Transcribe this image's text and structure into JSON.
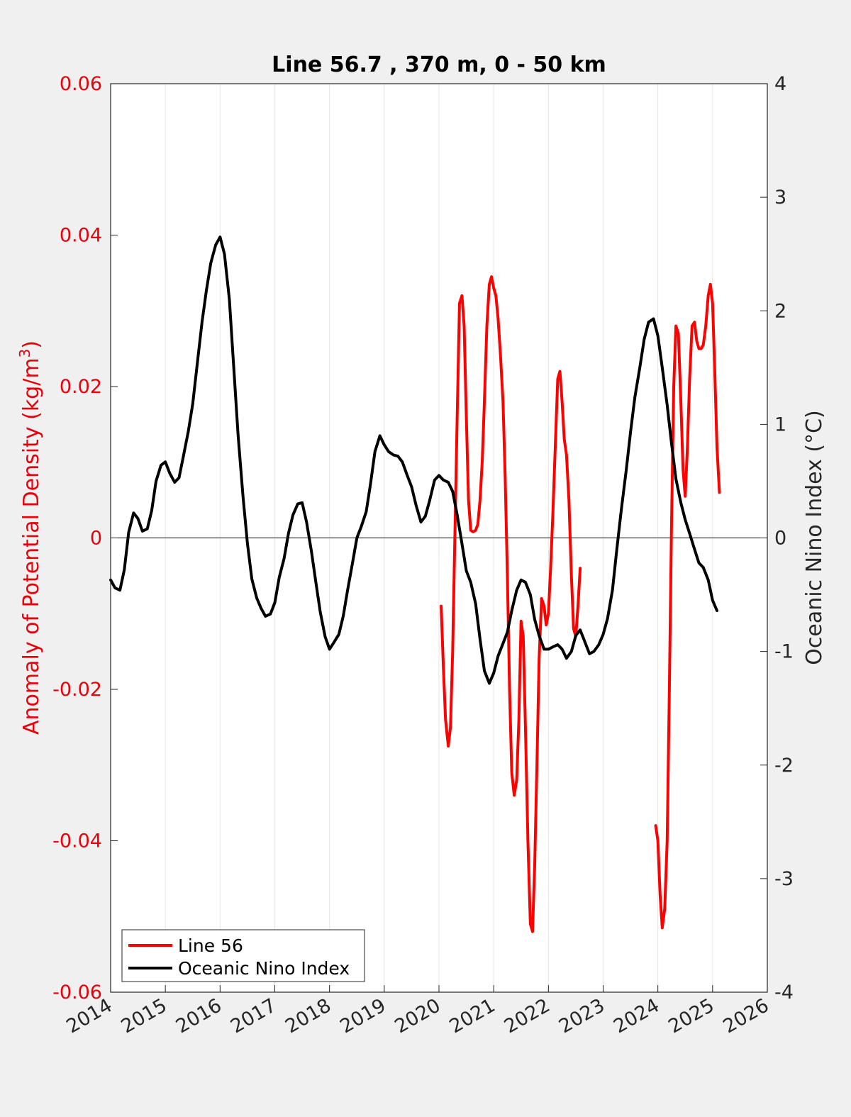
{
  "chart_data": {
    "type": "line",
    "title": "Line 56.7 , 370 m, 0 - 50 km",
    "xlabel": "",
    "ylabel_left": "Anomaly of Potential Density (kg/m",
    "ylabel_left_sup": "3",
    "ylabel_left_close": ")",
    "ylabel_right": "Oceanic Nino Index (°C)",
    "xlim": [
      2014,
      2026
    ],
    "ylim_left": [
      -0.06,
      0.06
    ],
    "ylim_right": [
      -4,
      4
    ],
    "x_ticks": [
      2014,
      2015,
      2016,
      2017,
      2018,
      2019,
      2020,
      2021,
      2022,
      2023,
      2024,
      2025,
      2026
    ],
    "x_tick_labels": [
      "2014",
      "2015",
      "2016",
      "2017",
      "2018",
      "2019",
      "2020",
      "2021",
      "2022",
      "2023",
      "2024",
      "2025",
      "2026"
    ],
    "y_left_ticks": [
      0.06,
      0.04,
      0.02,
      0,
      -0.02,
      -0.04,
      -0.06
    ],
    "y_left_tick_labels": [
      "0.06",
      "0.04",
      "0.02",
      "0",
      "-0.02",
      "-0.04",
      "-0.06"
    ],
    "y_right_ticks": [
      4,
      3,
      2,
      1,
      0,
      -1,
      -2,
      -3,
      -4
    ],
    "y_right_tick_labels": [
      "4",
      "3",
      "2",
      "1",
      "0",
      "-1",
      "-2",
      "-3",
      "-4"
    ],
    "grid": "vertical",
    "legend_position": "bottom-left",
    "colors": {
      "line56": "#ff0000",
      "oni": "#000000",
      "left_axis": "#e8000b",
      "plot_bg": "#ffffff",
      "figure_bg": "#f0f0f0"
    },
    "series": [
      {
        "name": "Line 56",
        "axis": "left",
        "segments": [
          [
            [
              2020.04,
              -0.009
            ],
            [
              2020.08,
              -0.017
            ],
            [
              2020.12,
              -0.024
            ],
            [
              2020.17,
              -0.0275
            ],
            [
              2020.21,
              -0.025
            ],
            [
              2020.25,
              -0.015
            ],
            [
              2020.29,
              0.0
            ],
            [
              2020.33,
              0.015
            ],
            [
              2020.375,
              0.031
            ],
            [
              2020.42,
              0.032
            ],
            [
              2020.46,
              0.028
            ],
            [
              2020.5,
              0.016
            ],
            [
              2020.54,
              0.005
            ],
            [
              2020.58,
              0.001
            ],
            [
              2020.625,
              0.0008
            ],
            [
              2020.67,
              0.001
            ],
            [
              2020.71,
              0.0018
            ],
            [
              2020.75,
              0.005
            ],
            [
              2020.79,
              0.01
            ],
            [
              2020.83,
              0.018
            ],
            [
              2020.875,
              0.028
            ],
            [
              2020.92,
              0.0335
            ],
            [
              2020.96,
              0.0345
            ],
            [
              2021.0,
              0.033
            ],
            [
              2021.04,
              0.032
            ],
            [
              2021.08,
              0.029
            ],
            [
              2021.125,
              0.024
            ],
            [
              2021.17,
              0.018
            ],
            [
              2021.21,
              0.008
            ],
            [
              2021.25,
              -0.005
            ],
            [
              2021.29,
              -0.02
            ],
            [
              2021.33,
              -0.031
            ],
            [
              2021.375,
              -0.034
            ],
            [
              2021.42,
              -0.032
            ],
            [
              2021.46,
              -0.024
            ],
            [
              2021.5,
              -0.011
            ],
            [
              2021.54,
              -0.013
            ],
            [
              2021.58,
              -0.025
            ],
            [
              2021.625,
              -0.04
            ],
            [
              2021.67,
              -0.051
            ],
            [
              2021.71,
              -0.052
            ],
            [
              2021.75,
              -0.043
            ],
            [
              2021.79,
              -0.03
            ],
            [
              2021.83,
              -0.016
            ],
            [
              2021.875,
              -0.008
            ],
            [
              2021.92,
              -0.009
            ],
            [
              2021.96,
              -0.0115
            ],
            [
              2022.0,
              -0.01
            ],
            [
              2022.04,
              -0.004
            ],
            [
              2022.08,
              0.003
            ],
            [
              2022.125,
              0.012
            ],
            [
              2022.17,
              0.021
            ],
            [
              2022.21,
              0.022
            ],
            [
              2022.25,
              0.018
            ],
            [
              2022.29,
              0.013
            ],
            [
              2022.33,
              0.011
            ],
            [
              2022.375,
              0.005
            ],
            [
              2022.42,
              -0.005
            ],
            [
              2022.46,
              -0.012
            ],
            [
              2022.5,
              -0.013
            ],
            [
              2022.54,
              -0.009
            ],
            [
              2022.58,
              -0.004
            ]
          ],
          [
            [
              2023.96,
              -0.038
            ],
            [
              2024.0,
              -0.04
            ],
            [
              2024.04,
              -0.047
            ],
            [
              2024.08,
              -0.0515
            ],
            [
              2024.125,
              -0.049
            ],
            [
              2024.17,
              -0.04
            ],
            [
              2024.21,
              -0.02
            ],
            [
              2024.25,
              0.002
            ],
            [
              2024.29,
              0.02
            ],
            [
              2024.33,
              0.028
            ],
            [
              2024.375,
              0.027
            ],
            [
              2024.42,
              0.018
            ],
            [
              2024.46,
              0.009
            ],
            [
              2024.5,
              0.0055
            ],
            [
              2024.54,
              0.012
            ],
            [
              2024.58,
              0.021
            ],
            [
              2024.625,
              0.028
            ],
            [
              2024.67,
              0.0285
            ],
            [
              2024.71,
              0.026
            ],
            [
              2024.75,
              0.025
            ],
            [
              2024.79,
              0.025
            ],
            [
              2024.83,
              0.0255
            ],
            [
              2024.875,
              0.028
            ],
            [
              2024.92,
              0.032
            ],
            [
              2024.96,
              0.0335
            ],
            [
              2025.0,
              0.031
            ],
            [
              2025.04,
              0.022
            ],
            [
              2025.08,
              0.012
            ],
            [
              2025.125,
              0.006
            ]
          ]
        ]
      },
      {
        "name": "Oceanic Nino Index",
        "axis": "right",
        "segments": [
          [
            [
              2014.0,
              -0.37
            ],
            [
              2014.08,
              -0.44
            ],
            [
              2014.17,
              -0.46
            ],
            [
              2014.25,
              -0.28
            ],
            [
              2014.33,
              0.05
            ],
            [
              2014.42,
              0.22
            ],
            [
              2014.5,
              0.17
            ],
            [
              2014.58,
              0.06
            ],
            [
              2014.67,
              0.08
            ],
            [
              2014.75,
              0.24
            ],
            [
              2014.83,
              0.5
            ],
            [
              2014.92,
              0.64
            ],
            [
              2015.0,
              0.67
            ],
            [
              2015.08,
              0.57
            ],
            [
              2015.17,
              0.49
            ],
            [
              2015.25,
              0.53
            ],
            [
              2015.33,
              0.72
            ],
            [
              2015.42,
              0.94
            ],
            [
              2015.5,
              1.18
            ],
            [
              2015.58,
              1.52
            ],
            [
              2015.67,
              1.9
            ],
            [
              2015.75,
              2.18
            ],
            [
              2015.83,
              2.42
            ],
            [
              2015.92,
              2.58
            ],
            [
              2016.0,
              2.65
            ],
            [
              2016.08,
              2.5
            ],
            [
              2016.17,
              2.1
            ],
            [
              2016.25,
              1.5
            ],
            [
              2016.33,
              0.9
            ],
            [
              2016.42,
              0.36
            ],
            [
              2016.5,
              -0.05
            ],
            [
              2016.58,
              -0.36
            ],
            [
              2016.67,
              -0.53
            ],
            [
              2016.75,
              -0.62
            ],
            [
              2016.83,
              -0.69
            ],
            [
              2016.92,
              -0.67
            ],
            [
              2017.0,
              -0.57
            ],
            [
              2017.08,
              -0.35
            ],
            [
              2017.17,
              -0.18
            ],
            [
              2017.25,
              0.04
            ],
            [
              2017.33,
              0.2
            ],
            [
              2017.42,
              0.3
            ],
            [
              2017.5,
              0.31
            ],
            [
              2017.58,
              0.14
            ],
            [
              2017.67,
              -0.12
            ],
            [
              2017.75,
              -0.39
            ],
            [
              2017.83,
              -0.65
            ],
            [
              2017.92,
              -0.87
            ],
            [
              2018.0,
              -0.98
            ],
            [
              2018.08,
              -0.92
            ],
            [
              2018.17,
              -0.85
            ],
            [
              2018.25,
              -0.69
            ],
            [
              2018.33,
              -0.46
            ],
            [
              2018.42,
              -0.22
            ],
            [
              2018.5,
              0.0
            ],
            [
              2018.58,
              0.1
            ],
            [
              2018.67,
              0.23
            ],
            [
              2018.75,
              0.48
            ],
            [
              2018.83,
              0.76
            ],
            [
              2018.92,
              0.9
            ],
            [
              2019.0,
              0.82
            ],
            [
              2019.08,
              0.76
            ],
            [
              2019.17,
              0.73
            ],
            [
              2019.25,
              0.72
            ],
            [
              2019.33,
              0.67
            ],
            [
              2019.42,
              0.55
            ],
            [
              2019.5,
              0.45
            ],
            [
              2019.58,
              0.29
            ],
            [
              2019.67,
              0.14
            ],
            [
              2019.75,
              0.19
            ],
            [
              2019.83,
              0.33
            ],
            [
              2019.92,
              0.51
            ],
            [
              2020.0,
              0.55
            ],
            [
              2020.08,
              0.51
            ],
            [
              2020.17,
              0.49
            ],
            [
              2020.25,
              0.41
            ],
            [
              2020.33,
              0.21
            ],
            [
              2020.42,
              -0.05
            ],
            [
              2020.5,
              -0.29
            ],
            [
              2020.58,
              -0.39
            ],
            [
              2020.67,
              -0.58
            ],
            [
              2020.75,
              -0.89
            ],
            [
              2020.83,
              -1.17
            ],
            [
              2020.92,
              -1.28
            ],
            [
              2021.0,
              -1.19
            ],
            [
              2021.08,
              -1.04
            ],
            [
              2021.17,
              -0.93
            ],
            [
              2021.25,
              -0.83
            ],
            [
              2021.33,
              -0.64
            ],
            [
              2021.42,
              -0.46
            ],
            [
              2021.5,
              -0.37
            ],
            [
              2021.58,
              -0.39
            ],
            [
              2021.67,
              -0.5
            ],
            [
              2021.75,
              -0.72
            ],
            [
              2021.83,
              -0.86
            ],
            [
              2021.92,
              -0.98
            ],
            [
              2022.0,
              -0.98
            ],
            [
              2022.08,
              -0.96
            ],
            [
              2022.17,
              -0.94
            ],
            [
              2022.25,
              -0.98
            ],
            [
              2022.33,
              -1.06
            ],
            [
              2022.42,
              -1.0
            ],
            [
              2022.5,
              -0.86
            ],
            [
              2022.58,
              -0.81
            ],
            [
              2022.67,
              -0.92
            ],
            [
              2022.75,
              -1.02
            ],
            [
              2022.83,
              -1.0
            ],
            [
              2022.92,
              -0.94
            ],
            [
              2023.0,
              -0.85
            ],
            [
              2023.08,
              -0.71
            ],
            [
              2023.17,
              -0.46
            ],
            [
              2023.25,
              -0.1
            ],
            [
              2023.33,
              0.24
            ],
            [
              2023.42,
              0.59
            ],
            [
              2023.5,
              0.93
            ],
            [
              2023.58,
              1.24
            ],
            [
              2023.67,
              1.5
            ],
            [
              2023.75,
              1.75
            ],
            [
              2023.83,
              1.9
            ],
            [
              2023.92,
              1.93
            ],
            [
              2024.0,
              1.78
            ],
            [
              2024.08,
              1.5
            ],
            [
              2024.17,
              1.17
            ],
            [
              2024.25,
              0.83
            ],
            [
              2024.33,
              0.52
            ],
            [
              2024.42,
              0.31
            ],
            [
              2024.5,
              0.16
            ],
            [
              2024.58,
              0.04
            ],
            [
              2024.67,
              -0.1
            ],
            [
              2024.75,
              -0.22
            ],
            [
              2024.83,
              -0.26
            ],
            [
              2024.92,
              -0.37
            ],
            [
              2025.0,
              -0.55
            ],
            [
              2025.08,
              -0.64
            ]
          ]
        ]
      }
    ]
  }
}
